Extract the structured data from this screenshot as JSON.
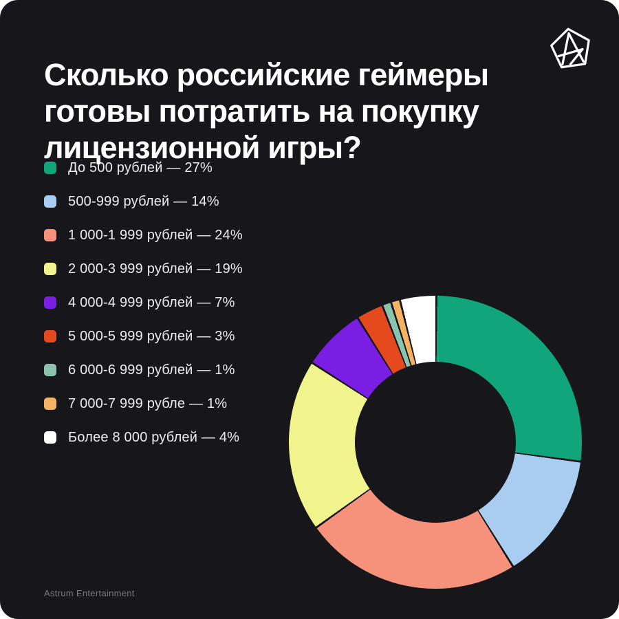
{
  "page": {
    "background": "#FFFFFF"
  },
  "theme": {
    "card_bg": "#17171B",
    "title_color": "#FFFFFF",
    "legend_text_color": "#EDECF1",
    "footer_color": "#7B7C82",
    "logo_color": "#FFFFFF"
  },
  "header": {
    "title": "Сколько российские геймеры\nготовы потратить на покупку\nлицензионной игры?",
    "logo_icon": "astrum-pentagon-star-logo"
  },
  "legend": {
    "items": [
      {
        "label": "До 500 рублей — 27%",
        "color": "#11A57B"
      },
      {
        "label": "500-999 рублей — 14%",
        "color": "#A9CCF1"
      },
      {
        "label": "1 000-1 999 рублей — 24%",
        "color": "#F6917B"
      },
      {
        "label": "2 000-3 999 рублей — 19%",
        "color": "#F1F38C"
      },
      {
        "label": "4 000-4 999 рублей — 7%",
        "color": "#7B1EE3"
      },
      {
        "label": "5 000-5 999 рублей — 3%",
        "color": "#E54A1F"
      },
      {
        "label": "6 000-6 999 рублей — 1%",
        "color": "#8AC3AE"
      },
      {
        "label": "7 000-7 999 рубле — 1%",
        "color": "#F5B262"
      },
      {
        "label": "Более 8 000 рублей — 4%",
        "color": "#FFFFFF"
      }
    ]
  },
  "chart_data": {
    "type": "pie",
    "donut": true,
    "title": "Сколько российские геймеры готовы потратить на покупку лицензионной игры?",
    "labels": [
      "До 500 рублей",
      "500-999 рублей",
      "1 000-1 999 рублей",
      "2 000-3 999 рублей",
      "4 000-4 999 рублей",
      "5 000-5 999 рублей",
      "6 000-6 999 рублей",
      "7 000-7 999 рубле",
      "Более 8 000 рублей"
    ],
    "values": [
      27,
      14,
      24,
      19,
      7,
      3,
      1,
      1,
      4
    ],
    "colors": [
      "#11A57B",
      "#A9CCF1",
      "#F6917B",
      "#F1F38C",
      "#7B1EE3",
      "#E54A1F",
      "#8AC3AE",
      "#F5B262",
      "#FFFFFF"
    ],
    "unit": "%",
    "start_angle_deg": 0,
    "direction": "clockwise",
    "slice_gap_deg": 0.8,
    "inner_radius_ratio": 0.55,
    "legend_position": "left"
  },
  "footer": {
    "text": "Astrum Entertainment"
  }
}
